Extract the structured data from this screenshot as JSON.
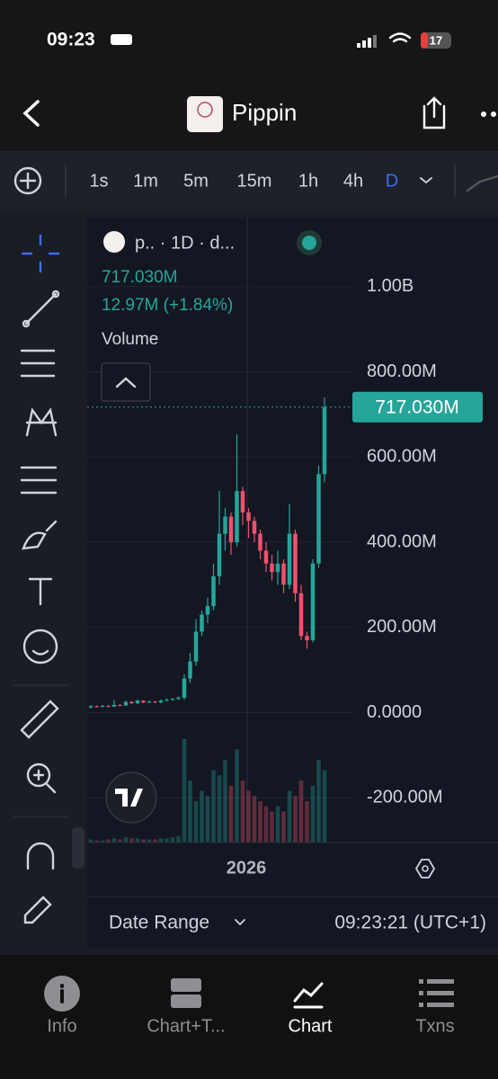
{
  "status_bar": {
    "time": "09:23",
    "battery": "17"
  },
  "header": {
    "title": "Pippin"
  },
  "intervals": [
    "1s",
    "1m",
    "5m",
    "15m",
    "1h",
    "4h",
    "D"
  ],
  "chart_data": {
    "type": "candlestick",
    "legend": {
      "symbol": "p.. · 1D · d...",
      "price": "717.030M",
      "change": "12.97M (+1.84%)",
      "volume_label": "Volume"
    },
    "open": [
      12,
      15,
      14,
      16,
      14,
      18,
      17,
      25,
      22,
      28,
      24,
      26,
      24,
      28,
      30,
      32,
      35,
      80,
      120,
      190,
      230,
      250,
      320,
      420,
      460,
      400,
      520,
      470,
      450,
      420,
      380,
      350,
      330,
      350,
      300,
      420,
      280,
      180,
      170,
      350,
      560
    ],
    "high": [
      18,
      17,
      18,
      17,
      30,
      20,
      28,
      27,
      31,
      29,
      28,
      27,
      31,
      33,
      34,
      38,
      90,
      140,
      220,
      240,
      270,
      350,
      520,
      480,
      470,
      653,
      530,
      480,
      460,
      430,
      400,
      370,
      380,
      360,
      490,
      430,
      300,
      190,
      360,
      580,
      740
    ],
    "low": [
      10,
      12,
      12,
      12,
      13,
      15,
      15,
      20,
      20,
      22,
      22,
      22,
      22,
      26,
      28,
      30,
      30,
      70,
      110,
      180,
      210,
      240,
      300,
      380,
      370,
      390,
      440,
      410,
      400,
      360,
      330,
      310,
      300,
      280,
      290,
      260,
      170,
      150,
      165,
      340,
      540
    ],
    "close": [
      15,
      14,
      16,
      14,
      18,
      17,
      25,
      22,
      28,
      24,
      26,
      24,
      28,
      30,
      32,
      35,
      80,
      120,
      190,
      230,
      250,
      320,
      420,
      460,
      400,
      520,
      470,
      450,
      420,
      380,
      350,
      330,
      350,
      300,
      420,
      280,
      180,
      170,
      350,
      560,
      717
    ],
    "volume": [
      3,
      2,
      2,
      3,
      4,
      3,
      5,
      4,
      4,
      3,
      3,
      3,
      4,
      4,
      5,
      6,
      100,
      60,
      40,
      50,
      45,
      70,
      65,
      80,
      55,
      90,
      60,
      50,
      45,
      40,
      35,
      30,
      35,
      30,
      50,
      45,
      60,
      40,
      55,
      80,
      70
    ],
    "up_color": "#26a69a",
    "down_color": "#f0506e",
    "ylim": [
      -305,
      1162
    ],
    "yticks": [
      {
        "value": 1000,
        "label": "1.00B"
      },
      {
        "value": 800,
        "label": "800.00M"
      },
      {
        "value": 600,
        "label": "600.00M"
      },
      {
        "value": 400,
        "label": "400.00M"
      },
      {
        "value": 200,
        "label": "200.00M"
      },
      {
        "value": 0,
        "label": "0.0000"
      },
      {
        "value": -200,
        "label": "-200.00M"
      }
    ],
    "last_price": {
      "value": 717.03,
      "label": "717.030M"
    },
    "x_label": "2026"
  },
  "footer": {
    "date_range": "Date Range",
    "time": "09:23:21 (UTC+1)"
  },
  "tabs": [
    "Info",
    "Chart+T...",
    "Chart",
    "Txns"
  ]
}
